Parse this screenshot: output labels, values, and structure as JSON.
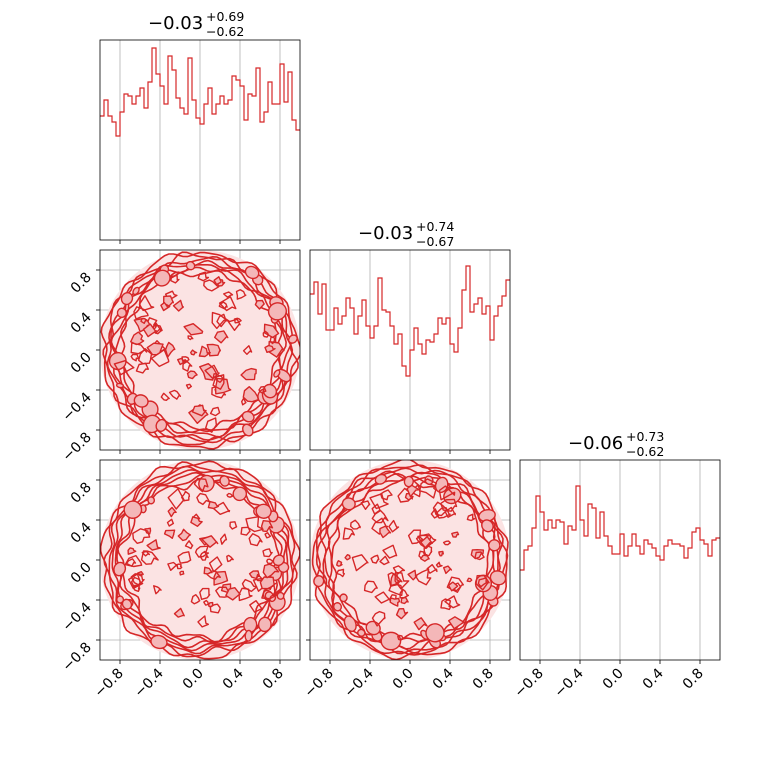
{
  "chart_data": {
    "type": "corner",
    "color": "#d62728",
    "fill_color": "#f4b7b8",
    "grid": true,
    "params": [
      {
        "median": "−0.03",
        "plus": "+0.69",
        "minus": "−0.62"
      },
      {
        "median": "−0.03",
        "plus": "+0.74",
        "minus": "−0.67"
      },
      {
        "median": "−0.06",
        "plus": "+0.73",
        "minus": "−0.62"
      }
    ],
    "axis_range": [
      -1,
      1
    ],
    "tick_values": [
      -0.8,
      -0.4,
      0.0,
      0.4,
      0.8
    ],
    "tick_labels": [
      "−0.8",
      "−0.4",
      "0.0",
      "0.4",
      "0.8"
    ],
    "histograms": [
      [
        0.62,
        0.7,
        0.62,
        0.59,
        0.52,
        0.64,
        0.73,
        0.72,
        0.68,
        0.72,
        0.76,
        0.66,
        0.79,
        0.96,
        0.83,
        0.77,
        0.68,
        0.92,
        0.85,
        0.71,
        0.66,
        0.63,
        0.91,
        0.7,
        0.61,
        0.58,
        0.68,
        0.76,
        0.63,
        0.68,
        0.72,
        0.68,
        0.7,
        0.82,
        0.8,
        0.77,
        0.6,
        0.73,
        0.72,
        0.86,
        0.59,
        0.64,
        0.79,
        0.68,
        0.68,
        0.88,
        0.69,
        0.84,
        0.6,
        0.55
      ],
      [
        0.78,
        0.84,
        0.68,
        0.83,
        0.6,
        0.6,
        0.71,
        0.63,
        0.67,
        0.76,
        0.71,
        0.58,
        0.67,
        0.75,
        0.62,
        0.56,
        0.62,
        0.86,
        0.7,
        0.69,
        0.62,
        0.53,
        0.58,
        0.42,
        0.37,
        0.5,
        0.61,
        0.53,
        0.48,
        0.55,
        0.54,
        0.58,
        0.66,
        0.63,
        0.66,
        0.53,
        0.49,
        0.61,
        0.8,
        0.92,
        0.69,
        0.73,
        0.76,
        0.68,
        0.72,
        0.55,
        0.67,
        0.72,
        0.77,
        0.85
      ],
      [
        0.45,
        0.55,
        0.57,
        0.66,
        0.82,
        0.74,
        0.65,
        0.7,
        0.66,
        0.7,
        0.69,
        0.58,
        0.67,
        0.65,
        0.87,
        0.7,
        0.62,
        0.78,
        0.76,
        0.61,
        0.74,
        0.62,
        0.57,
        0.53,
        0.53,
        0.63,
        0.52,
        0.57,
        0.63,
        0.57,
        0.53,
        0.6,
        0.58,
        0.56,
        0.52,
        0.5,
        0.57,
        0.6,
        0.58,
        0.58,
        0.57,
        0.51,
        0.56,
        0.64,
        0.66,
        0.6,
        0.58,
        0.52,
        0.6,
        0.61
      ]
    ],
    "contour_pairs": [
      {
        "row": 1,
        "col": 0,
        "seed": 11
      },
      {
        "row": 2,
        "col": 0,
        "seed": 23
      },
      {
        "row": 2,
        "col": 1,
        "seed": 37
      }
    ]
  }
}
